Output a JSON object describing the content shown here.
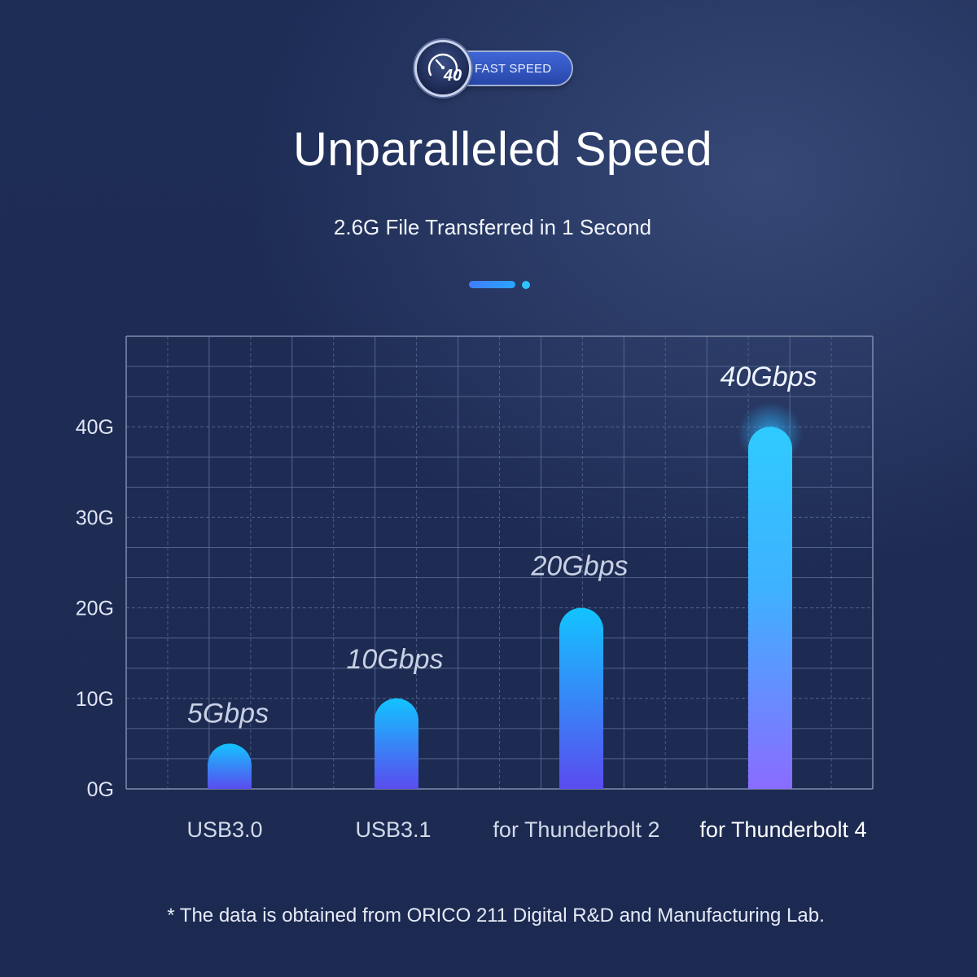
{
  "badge": {
    "number": "40",
    "label": "FAST SPEED",
    "icon": "speedometer-icon"
  },
  "header": {
    "title": "Unparalleled Speed",
    "subtitle": "2.6G File Transferred in 1 Second"
  },
  "chart_data": {
    "type": "bar",
    "categories": [
      "USB3.0",
      "USB3.1",
      "for Thunderbolt 2",
      "for Thunderbolt 4"
    ],
    "values": [
      5,
      10,
      20,
      40
    ],
    "value_labels": [
      "5Gbps",
      "10Gbps",
      "20Gbps",
      "40Gbps"
    ],
    "y_ticks": [
      "0G",
      "10G",
      "20G",
      "30G",
      "40G"
    ],
    "ylim": [
      0,
      50
    ],
    "grid": true,
    "title": "",
    "xlabel": "",
    "ylabel": ""
  },
  "footnote": "* The data is obtained from ORICO 211 Digital R&D and Manufacturing Lab.",
  "colors": {
    "background_top": "#1d2d56",
    "bar_top": "#1fc6ff",
    "bar_bottom": "#5b4cf0",
    "highlight_bar_top": "#2ecbff",
    "highlight_bar_bottom": "#8a6cff",
    "accent": "#3f7dff"
  }
}
